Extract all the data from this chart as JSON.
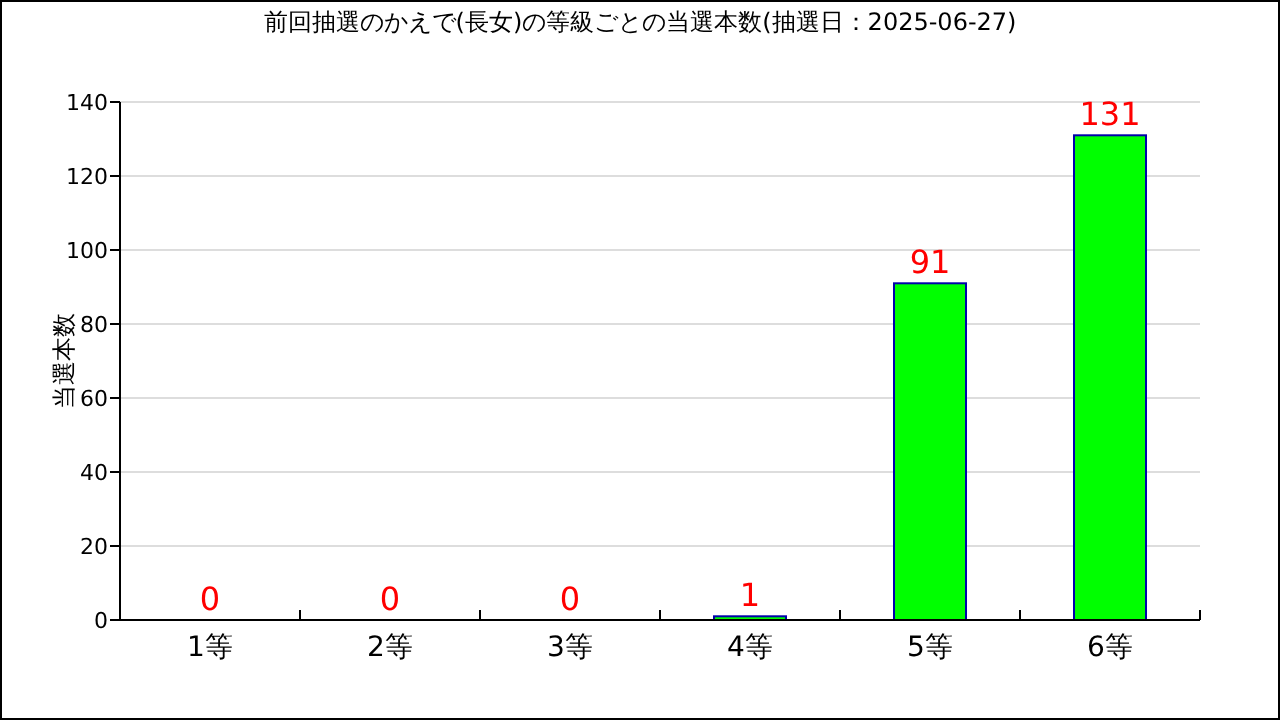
{
  "chart_data": {
    "type": "bar",
    "title": "前回抽選のかえで(長女)の等級ごとの当選本数(抽選日：2025-06-27)",
    "ylabel": "当選本数",
    "categories": [
      "1等",
      "2等",
      "3等",
      "4等",
      "5等",
      "6等"
    ],
    "values": [
      0,
      0,
      0,
      1,
      91,
      131
    ],
    "color": "#00ff00",
    "ylim": [
      0,
      140
    ],
    "yticks": [
      0,
      20,
      40,
      60,
      80,
      100,
      120,
      140
    ],
    "grid": "y",
    "data_labels": true
  }
}
